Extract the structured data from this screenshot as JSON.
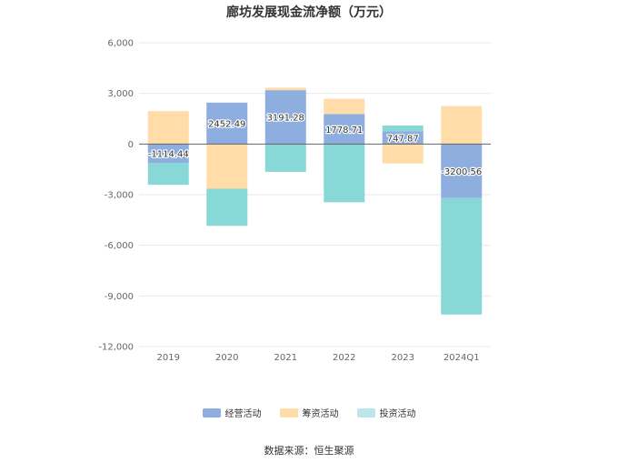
{
  "chart_data": {
    "type": "bar",
    "stacked": true,
    "title": "廊坊发展现金流净额（万元）",
    "categories": [
      "2019",
      "2020",
      "2021",
      "2022",
      "2023",
      "2024Q1"
    ],
    "series": [
      {
        "name": "经营活动",
        "color": "#8eaee0",
        "values": [
          -1114.44,
          2452.49,
          3191.28,
          1778.71,
          747.87,
          -3200.56
        ]
      },
      {
        "name": "筹资活动",
        "color": "#ffdca8",
        "values": [
          1950,
          -2650,
          150,
          900,
          -1150,
          2250
        ]
      },
      {
        "name": "投资活动",
        "color": "#88d8d8",
        "values": [
          -1300,
          -2200,
          -1650,
          -3450,
          350,
          -6900
        ]
      }
    ],
    "data_labels": [
      "-1114.44",
      "2452.49",
      "3191.28",
      "1778.71",
      "747.87",
      "-3200.56"
    ],
    "y_ticks": [
      "6,000",
      "3,000",
      "0",
      "-3,000",
      "-6,000",
      "-9,000",
      "-12,000"
    ],
    "y_tick_values": [
      6000,
      3000,
      0,
      -3000,
      -6000,
      -9000,
      -12000
    ],
    "ylim": [
      -12000,
      6000
    ],
    "grid": true,
    "legend_position": "bottom"
  },
  "source_text": "数据来源：恒生聚源"
}
